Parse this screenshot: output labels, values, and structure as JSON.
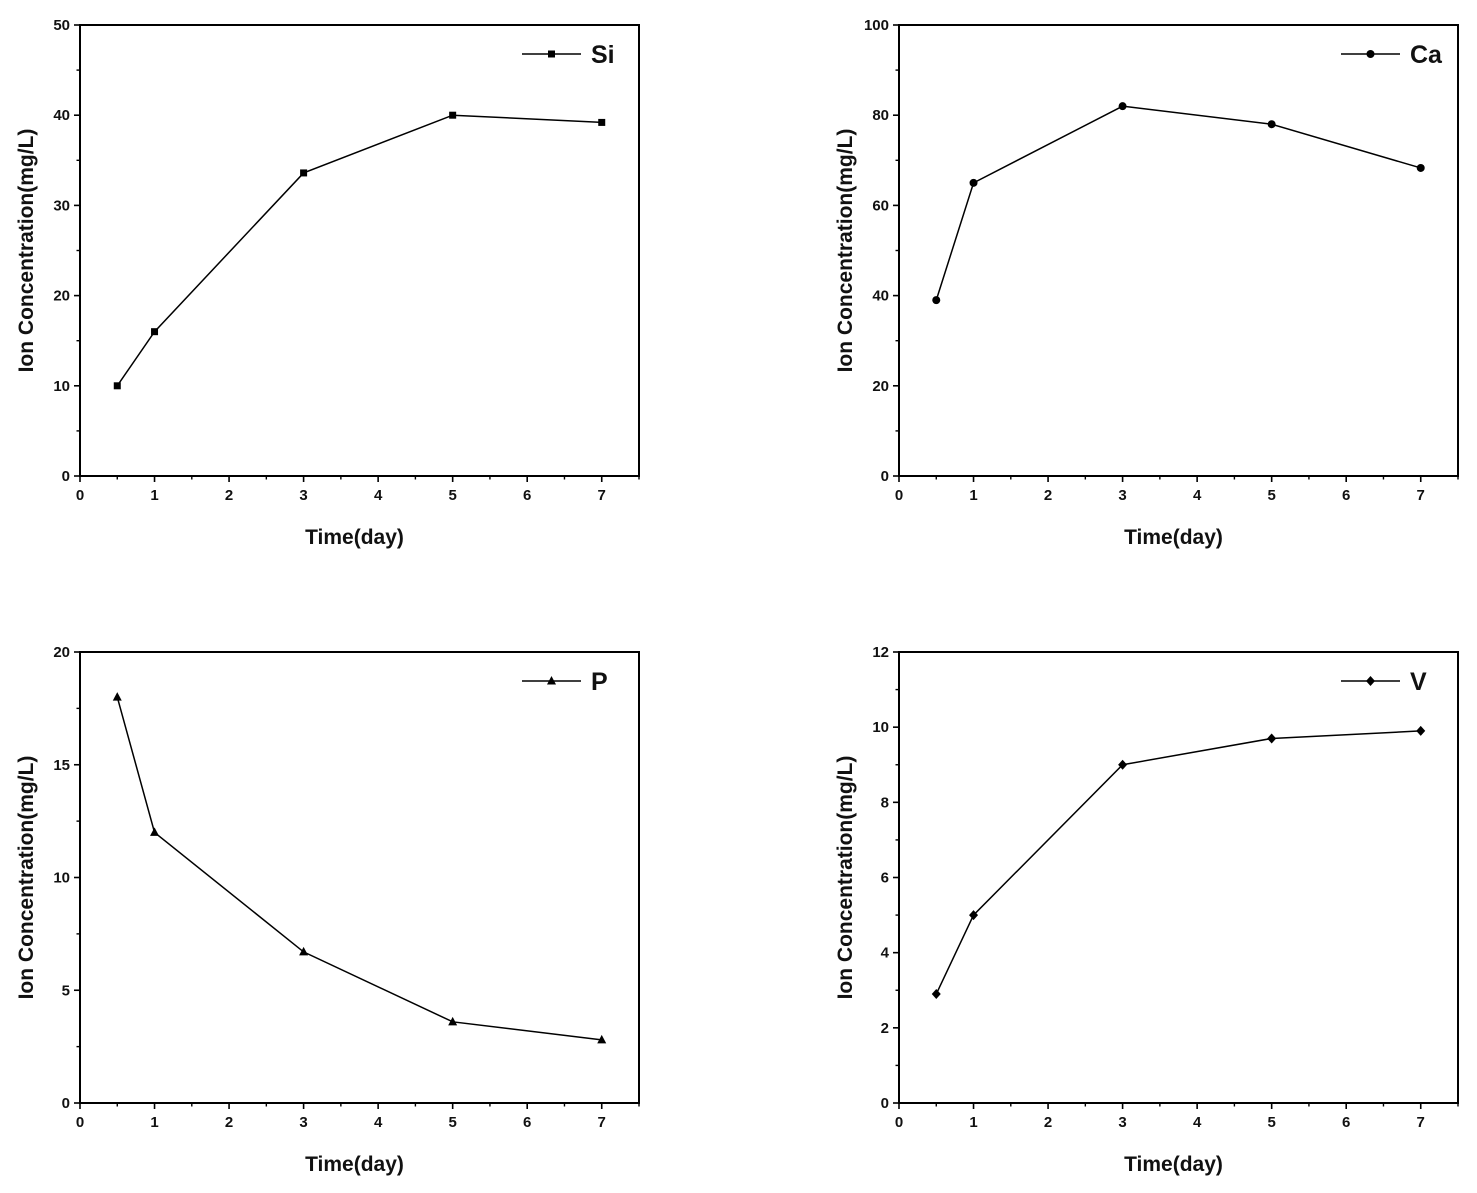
{
  "chart_data": [
    {
      "type": "line",
      "xlabel": "Time(day)",
      "ylabel": "Ion Concentration(mg/L)",
      "xlim": [
        0,
        7.5
      ],
      "ylim": [
        0,
        50
      ],
      "xticks": [
        0,
        1,
        2,
        3,
        4,
        5,
        6,
        7
      ],
      "yticks": [
        0,
        10,
        20,
        30,
        40,
        50
      ],
      "legend_position": "top-right",
      "grid": false,
      "series": [
        {
          "name": "Si",
          "marker": "square",
          "x": [
            0.5,
            1,
            3,
            5,
            7
          ],
          "y": [
            10.0,
            16.0,
            33.6,
            40.0,
            39.2
          ]
        }
      ]
    },
    {
      "type": "line",
      "xlabel": "Time(day)",
      "ylabel": "Ion Concentration(mg/L)",
      "xlim": [
        0,
        7.5
      ],
      "ylim": [
        0,
        100
      ],
      "xticks": [
        0,
        1,
        2,
        3,
        4,
        5,
        6,
        7
      ],
      "yticks": [
        0,
        20,
        40,
        60,
        80,
        100
      ],
      "legend_position": "top-right",
      "grid": false,
      "series": [
        {
          "name": "Ca",
          "marker": "circle",
          "x": [
            0.5,
            1,
            3,
            5,
            7
          ],
          "y": [
            39.0,
            65.0,
            82.0,
            78.0,
            68.3
          ]
        }
      ]
    },
    {
      "type": "line",
      "xlabel": "Time(day)",
      "ylabel": "Ion Concentration(mg/L)",
      "xlim": [
        0,
        7.5
      ],
      "ylim": [
        0,
        20
      ],
      "xticks": [
        0,
        1,
        2,
        3,
        4,
        5,
        6,
        7
      ],
      "yticks": [
        0,
        5,
        10,
        15,
        20
      ],
      "legend_position": "top-right",
      "grid": false,
      "series": [
        {
          "name": "P",
          "marker": "triangle",
          "x": [
            0.5,
            1,
            3,
            5,
            7
          ],
          "y": [
            18.0,
            12.0,
            6.7,
            3.6,
            2.8
          ]
        }
      ]
    },
    {
      "type": "line",
      "xlabel": "Time(day)",
      "ylabel": "Ion Concentration(mg/L)",
      "xlim": [
        0,
        7.5
      ],
      "ylim": [
        0,
        12
      ],
      "xticks": [
        0,
        1,
        2,
        3,
        4,
        5,
        6,
        7
      ],
      "yticks": [
        0,
        2,
        4,
        6,
        8,
        10,
        12
      ],
      "legend_position": "top-right",
      "grid": false,
      "series": [
        {
          "name": "V",
          "marker": "diamond",
          "x": [
            0.5,
            1,
            3,
            5,
            7
          ],
          "y": [
            2.9,
            5.0,
            9.0,
            9.7,
            9.9
          ]
        }
      ]
    }
  ],
  "colors": {
    "line": "#000000",
    "axis": "#000000",
    "text": "#111111"
  }
}
